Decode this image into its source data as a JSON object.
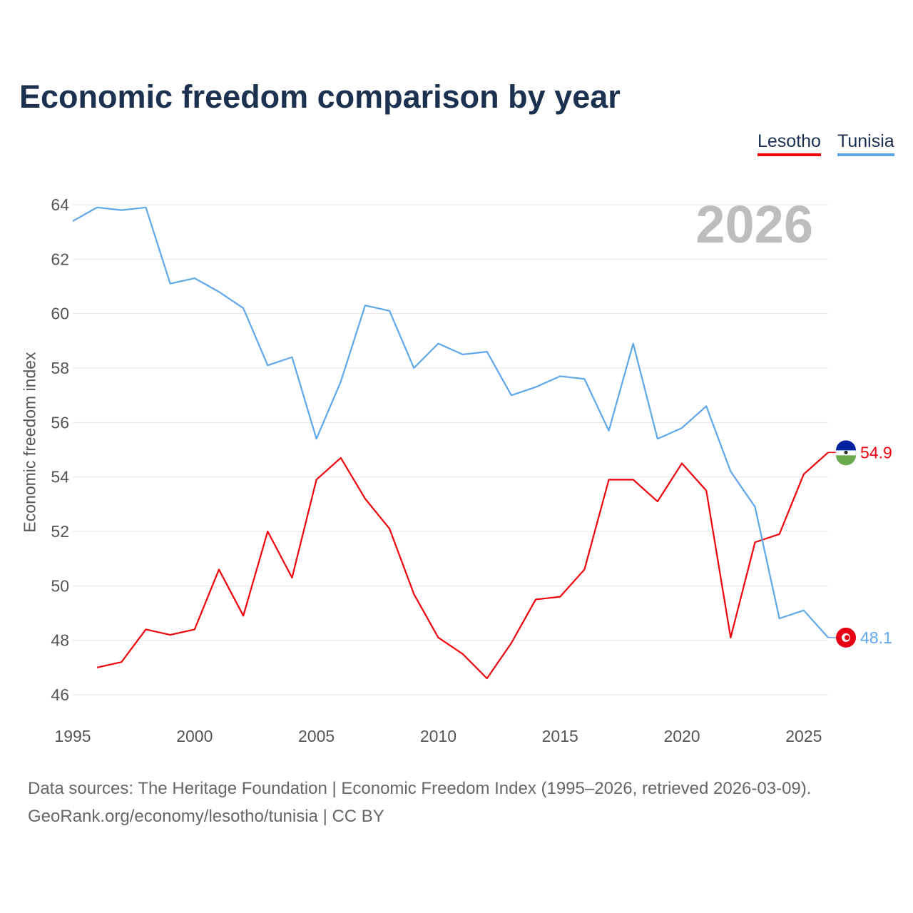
{
  "title": "Economic freedom comparison by year",
  "source_line1": "Data sources: The Heritage Foundation | Economic Freedom Index (1995–2026, retrieved 2026-03-09).",
  "source_line2": "GeoRank.org/economy/lesotho/tunisia | CC BY",
  "chart_data": {
    "type": "line",
    "title": "Economic freedom comparison by year",
    "xlabel": "",
    "ylabel": "Economic freedom index",
    "year_label": "2026",
    "xlim": [
      1995,
      2026
    ],
    "ylim": [
      46,
      64
    ],
    "xticks": [
      1995,
      2000,
      2005,
      2010,
      2015,
      2020,
      2025
    ],
    "yticks": [
      46,
      48,
      50,
      52,
      54,
      56,
      58,
      60,
      62,
      64
    ],
    "grid": true,
    "legend": "top-right",
    "series": [
      {
        "name": "Lesotho",
        "color": "#f0000b",
        "end_label": "54.9",
        "x": [
          1996,
          1997,
          1998,
          1999,
          2000,
          2001,
          2002,
          2003,
          2004,
          2005,
          2006,
          2007,
          2008,
          2009,
          2010,
          2011,
          2012,
          2013,
          2014,
          2015,
          2016,
          2017,
          2018,
          2019,
          2020,
          2021,
          2022,
          2023,
          2024,
          2025,
          2026
        ],
        "values": [
          47.0,
          47.2,
          48.4,
          48.2,
          48.4,
          50.6,
          48.9,
          52.0,
          50.3,
          53.9,
          54.7,
          53.2,
          52.1,
          49.7,
          48.1,
          47.5,
          46.6,
          47.9,
          49.5,
          49.6,
          50.6,
          53.9,
          53.9,
          53.1,
          54.5,
          53.5,
          48.1,
          51.6,
          51.9,
          54.1,
          54.9
        ]
      },
      {
        "name": "Tunisia",
        "color": "#5fa7eb",
        "end_label": "48.1",
        "x": [
          1995,
          1996,
          1997,
          1998,
          1999,
          2000,
          2001,
          2002,
          2003,
          2004,
          2005,
          2006,
          2007,
          2008,
          2009,
          2010,
          2011,
          2012,
          2013,
          2014,
          2015,
          2016,
          2017,
          2018,
          2019,
          2020,
          2021,
          2022,
          2023,
          2024,
          2025,
          2026
        ],
        "values": [
          63.4,
          63.9,
          63.8,
          63.9,
          61.1,
          61.3,
          60.8,
          60.2,
          58.1,
          58.4,
          55.4,
          57.5,
          60.3,
          60.1,
          58.0,
          58.9,
          58.5,
          58.6,
          57.0,
          57.3,
          57.7,
          57.6,
          55.7,
          58.9,
          55.4,
          55.8,
          56.6,
          54.2,
          52.9,
          48.8,
          49.1,
          48.1
        ]
      }
    ]
  }
}
